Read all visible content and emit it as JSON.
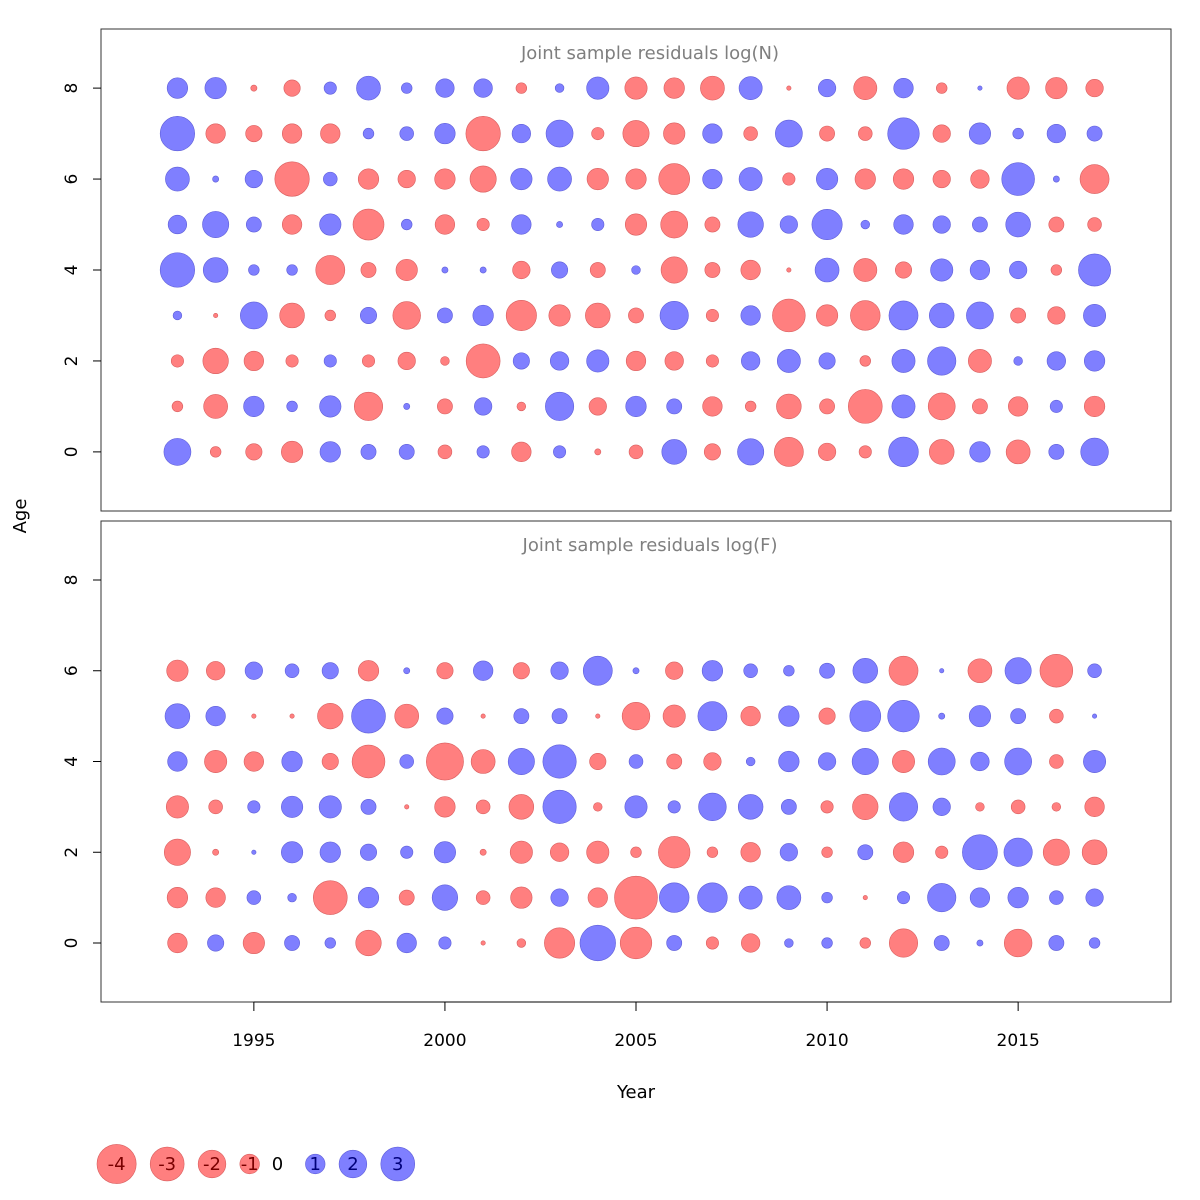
{
  "chart_data": {
    "type": "bubble",
    "years": [
      1993,
      1994,
      1995,
      1996,
      1997,
      1998,
      1999,
      2000,
      2001,
      2002,
      2003,
      2004,
      2005,
      2006,
      2007,
      2008,
      2009,
      2010,
      2011,
      2012,
      2013,
      2014,
      2015,
      2016,
      2017
    ],
    "xlabel": "Year",
    "ylabel": "Age",
    "xlim": [
      1991,
      2019
    ],
    "x_ticks": [
      1995,
      2000,
      2005,
      2010,
      2015
    ],
    "y_ticks": [
      0,
      2,
      4,
      6,
      8
    ],
    "ylim": [
      -1.3,
      9.3
    ],
    "colors": {
      "negative": "#ff7f7f",
      "positive": "#7f7fff"
    },
    "panels": [
      {
        "title": "Joint sample residuals log(N)",
        "ages": [
          8,
          7,
          6,
          5,
          4,
          3,
          2,
          1,
          0
        ],
        "residuals": [
          [
            1.1,
            1.2,
            -0.1,
            -0.7,
            0.4,
            1.5,
            0.3,
            0.9,
            0.9,
            -0.3,
            0.2,
            1.3,
            -1.3,
            -1.1,
            -1.5,
            1.4,
            -0.05,
            0.8,
            -1.4,
            1.0,
            -0.3,
            0.05,
            -1.3,
            -1.2,
            -0.8
          ],
          [
            3.1,
            -1.0,
            -0.7,
            -1.0,
            -1.0,
            0.3,
            0.5,
            1.1,
            -3.1,
            0.9,
            1.9,
            -0.4,
            -1.8,
            -1.2,
            1.0,
            -0.5,
            1.9,
            -0.6,
            -0.5,
            2.6,
            -0.8,
            1.2,
            0.3,
            0.9,
            0.6
          ],
          [
            1.5,
            0.1,
            0.8,
            -3.1,
            0.5,
            -1.1,
            -0.8,
            -1.1,
            -1.8,
            1.2,
            1.5,
            -1.2,
            -1.1,
            -2.5,
            1.0,
            1.4,
            -0.4,
            1.2,
            -1.1,
            -1.1,
            -0.8,
            -0.9,
            2.8,
            0.1,
            -2.2
          ],
          [
            0.9,
            1.8,
            0.6,
            -1.0,
            1.2,
            -2.5,
            0.3,
            -1.0,
            -0.4,
            1.0,
            0.1,
            0.4,
            -1.2,
            -1.9,
            -0.6,
            1.7,
            0.8,
            2.4,
            0.2,
            1.0,
            0.8,
            0.6,
            1.6,
            -0.6,
            -0.5
          ],
          [
            3.1,
            1.6,
            0.3,
            0.3,
            -2.2,
            -0.6,
            -1.2,
            0.1,
            0.1,
            -0.8,
            0.7,
            -0.6,
            0.2,
            -1.8,
            -0.6,
            -1.0,
            -0.05,
            1.5,
            -1.4,
            -0.7,
            1.3,
            1.0,
            0.8,
            -0.3,
            2.7
          ],
          [
            0.2,
            -0.05,
            1.9,
            -1.6,
            -0.3,
            0.7,
            -2.0,
            0.6,
            1.1,
            -2.4,
            -1.2,
            -1.6,
            -0.6,
            2.1,
            -0.4,
            1.0,
            -2.8,
            -1.2,
            -2.3,
            2.2,
            1.6,
            1.9,
            -0.6,
            -0.8,
            1.3
          ],
          [
            -0.4,
            -1.7,
            -1.0,
            -0.4,
            0.4,
            -0.4,
            -0.8,
            -0.2,
            -3.0,
            0.7,
            0.9,
            1.3,
            -1.0,
            -0.9,
            -0.4,
            0.9,
            1.4,
            0.7,
            -0.3,
            1.4,
            2.1,
            -1.4,
            0.2,
            0.9,
            1.1
          ],
          [
            -0.3,
            -1.5,
            1.1,
            0.3,
            1.2,
            -2.1,
            0.1,
            -0.6,
            0.8,
            -0.2,
            2.1,
            -0.8,
            1.1,
            0.6,
            -1.0,
            -0.3,
            -1.6,
            -0.6,
            -3.0,
            1.4,
            -1.9,
            -0.6,
            -1.0,
            0.4,
            -1.1
          ],
          [
            1.9,
            -0.3,
            -0.7,
            -1.2,
            1.1,
            0.6,
            0.6,
            -0.5,
            0.4,
            -1.0,
            0.4,
            -0.1,
            -0.5,
            1.6,
            -0.7,
            1.8,
            -2.2,
            -0.8,
            -0.4,
            2.3,
            -1.6,
            1.1,
            -1.5,
            0.6,
            2.0
          ]
        ]
      },
      {
        "title": "Joint sample residuals log(F)",
        "ages": [
          6,
          5,
          4,
          3,
          2,
          1,
          0
        ],
        "residuals": [
          [
            -1.2,
            -0.9,
            0.8,
            0.5,
            0.7,
            -1.1,
            0.1,
            -0.7,
            1.0,
            -0.7,
            0.8,
            2.2,
            0.1,
            -0.8,
            1.1,
            0.5,
            0.3,
            0.6,
            1.6,
            -2.2,
            0.05,
            -1.5,
            1.8,
            -2.8,
            0.5
          ],
          [
            1.6,
            1.0,
            -0.05,
            -0.05,
            -1.7,
            3.0,
            -1.5,
            0.7,
            -0.05,
            0.6,
            0.6,
            -0.05,
            -2.0,
            -1.3,
            2.2,
            -1.0,
            1.1,
            -0.7,
            2.5,
            2.6,
            0.1,
            1.2,
            0.6,
            -0.5,
            0.05
          ],
          [
            1.0,
            -1.3,
            -1.0,
            1.1,
            -0.7,
            -2.8,
            0.5,
            -3.6,
            -1.5,
            1.8,
            2.9,
            -0.7,
            0.5,
            -0.6,
            -0.8,
            0.2,
            1.1,
            0.8,
            1.8,
            -1.3,
            1.9,
            0.9,
            1.9,
            -0.5,
            1.3
          ],
          [
            -1.3,
            -0.5,
            0.4,
            1.2,
            1.3,
            0.6,
            -0.05,
            -1.1,
            -0.5,
            -1.6,
            2.9,
            -0.2,
            1.3,
            0.4,
            2.0,
            1.6,
            0.6,
            -0.4,
            -1.7,
            2.1,
            0.8,
            -0.2,
            -0.5,
            -0.2,
            -1.0
          ],
          [
            -1.8,
            -0.1,
            0.05,
            1.2,
            1.1,
            0.7,
            0.4,
            1.2,
            -0.1,
            -1.3,
            -0.9,
            -1.3,
            -0.3,
            -2.6,
            -0.3,
            -1.0,
            0.8,
            -0.3,
            0.6,
            -1.1,
            -0.4,
            3.2,
            2.1,
            -1.8,
            -1.6
          ],
          [
            -1.1,
            -1.0,
            0.5,
            0.2,
            -3.0,
            1.1,
            -0.6,
            1.7,
            -0.5,
            -1.2,
            0.8,
            -1.0,
            -4.8,
            2.3,
            2.3,
            1.4,
            1.5,
            0.3,
            -0.05,
            0.4,
            2.1,
            1.0,
            1.1,
            0.5,
            0.8
          ],
          [
            -1.0,
            0.7,
            -1.2,
            0.6,
            0.3,
            -1.7,
            1.0,
            0.4,
            -0.05,
            -0.2,
            -2.4,
            3.3,
            -2.6,
            0.6,
            -0.4,
            -0.9,
            0.2,
            0.3,
            -0.3,
            -2.1,
            0.6,
            0.1,
            -2.0,
            0.6,
            0.3
          ]
        ]
      }
    ],
    "legend": [
      {
        "value": -4,
        "label": "-4"
      },
      {
        "value": -3,
        "label": "-3"
      },
      {
        "value": -2,
        "label": "-2"
      },
      {
        "value": -1,
        "label": "-1"
      },
      {
        "value": 0,
        "label": "0"
      },
      {
        "value": 1,
        "label": "1"
      },
      {
        "value": 2,
        "label": "2"
      },
      {
        "value": 3,
        "label": "3"
      }
    ]
  }
}
